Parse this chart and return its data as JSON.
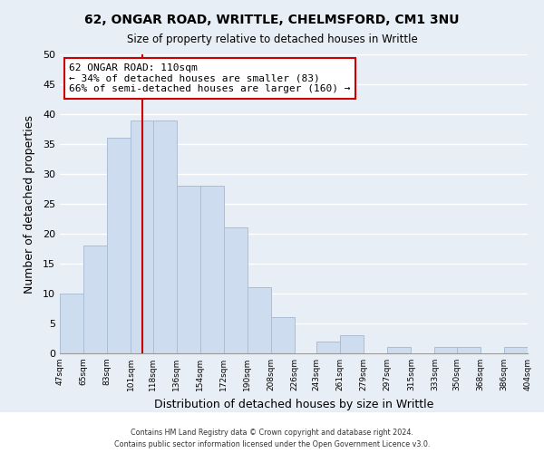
{
  "title": "62, ONGAR ROAD, WRITTLE, CHELMSFORD, CM1 3NU",
  "subtitle": "Size of property relative to detached houses in Writtle",
  "xlabel": "Distribution of detached houses by size in Writtle",
  "ylabel": "Number of detached properties",
  "bar_color": "#cddcee",
  "bar_edge_color": "#aabdd4",
  "bins": [
    47,
    65,
    83,
    101,
    118,
    136,
    154,
    172,
    190,
    208,
    226,
    243,
    261,
    279,
    297,
    315,
    333,
    350,
    368,
    386,
    404
  ],
  "counts": [
    10,
    18,
    36,
    39,
    39,
    28,
    28,
    21,
    11,
    6,
    0,
    2,
    3,
    0,
    1,
    0,
    1,
    1,
    0,
    1
  ],
  "tick_labels": [
    "47sqm",
    "65sqm",
    "83sqm",
    "101sqm",
    "118sqm",
    "136sqm",
    "154sqm",
    "172sqm",
    "190sqm",
    "208sqm",
    "226sqm",
    "243sqm",
    "261sqm",
    "279sqm",
    "297sqm",
    "315sqm",
    "333sqm",
    "350sqm",
    "368sqm",
    "386sqm",
    "404sqm"
  ],
  "reference_line_x": 110,
  "reference_line_label": "62 ONGAR ROAD: 110sqm",
  "annotation_line1": "← 34% of detached houses are smaller (83)",
  "annotation_line2": "66% of semi-detached houses are larger (160) →",
  "ylim": [
    0,
    50
  ],
  "yticks": [
    0,
    5,
    10,
    15,
    20,
    25,
    30,
    35,
    40,
    45,
    50
  ],
  "footer1": "Contains HM Land Registry data © Crown copyright and database right 2024.",
  "footer2": "Contains public sector information licensed under the Open Government Licence v3.0.",
  "fig_background": "#e8eef5",
  "plot_background": "#e8eef5",
  "grid_color": "#ffffff",
  "vline_color": "#cc0000",
  "footer_bg": "#ffffff"
}
